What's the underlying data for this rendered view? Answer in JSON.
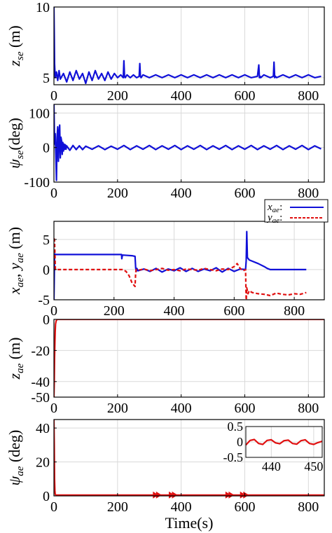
{
  "colors": {
    "blue": "#1010d8",
    "red": "#e01010",
    "grid": "#d9d9d9",
    "axis": "#000000"
  },
  "chart_data": [
    {
      "type": "line",
      "ylabel_main": "z",
      "ylabel_sub": "se",
      "ylabel_unit": " (m)",
      "xlim": [
        0,
        850
      ],
      "ylim": [
        4.5,
        10
      ],
      "xticks": [
        0,
        200,
        400,
        600,
        800
      ],
      "yticks": [
        5,
        10
      ],
      "xtick_labels": [
        "0",
        "200",
        "400",
        "600",
        "800"
      ],
      "ytick_labels": [
        "5",
        "10"
      ],
      "grid": true,
      "series": [
        {
          "color": "blue",
          "style": "solid",
          "x": [
            0,
            1,
            2,
            4,
            8,
            12,
            16,
            20,
            30,
            40,
            50,
            60,
            70,
            80,
            90,
            100,
            110,
            120,
            130,
            140,
            150,
            160,
            170,
            180,
            190,
            200,
            210,
            218,
            220,
            222,
            224,
            230,
            240,
            250,
            260,
            268,
            270,
            272,
            274,
            280,
            300,
            320,
            340,
            360,
            380,
            400,
            420,
            440,
            460,
            480,
            500,
            520,
            540,
            560,
            580,
            600,
            620,
            640,
            644,
            646,
            648,
            650,
            660,
            680,
            690,
            692,
            694,
            696,
            700,
            720,
            740,
            760,
            780,
            800,
            820,
            840
          ],
          "y": [
            10,
            8,
            6,
            5,
            5.4,
            4.8,
            5.5,
            4.9,
            5.3,
            4.7,
            5.4,
            4.8,
            5.5,
            4.9,
            5.3,
            4.6,
            5.4,
            4.8,
            5.5,
            4.9,
            5.3,
            4.8,
            5.4,
            4.9,
            5.3,
            5.0,
            5.2,
            5.0,
            6.2,
            5.1,
            5.0,
            5.2,
            5.0,
            5.2,
            5.0,
            5.1,
            6.0,
            5.1,
            5.0,
            5.2,
            5.0,
            5.2,
            5.0,
            5.2,
            5.0,
            5.2,
            5.0,
            5.2,
            5.0,
            5.2,
            5.0,
            5.2,
            5.0,
            5.2,
            5.0,
            5.2,
            5.0,
            5.1,
            5.9,
            5.0,
            5.1,
            5.0,
            5.2,
            5.0,
            5.1,
            6.1,
            5.0,
            5.1,
            5.0,
            5.2,
            5.0,
            5.2,
            5.0,
            5.2,
            5.0,
            5.1
          ]
        }
      ]
    },
    {
      "type": "line",
      "ylabel_main": "ψ",
      "ylabel_sub": "se",
      "ylabel_unit": "(deg)",
      "xlim": [
        0,
        850
      ],
      "ylim": [
        -100,
        125
      ],
      "xticks": [
        0,
        200,
        400,
        600,
        800
      ],
      "yticks": [
        -100,
        0,
        100
      ],
      "xtick_labels": [
        "0",
        "200",
        "400",
        "600",
        "800"
      ],
      "ytick_labels": [
        "-100",
        "0",
        "100"
      ],
      "grid": true,
      "series": [
        {
          "color": "blue",
          "style": "solid",
          "x": [
            0,
            2,
            4,
            6,
            8,
            10,
            12,
            14,
            16,
            18,
            20,
            22,
            24,
            26,
            28,
            30,
            32,
            34,
            36,
            38,
            40,
            50,
            60,
            70,
            80,
            90,
            100,
            120,
            140,
            160,
            180,
            200,
            220,
            240,
            260,
            280,
            300,
            320,
            340,
            360,
            380,
            400,
            420,
            440,
            460,
            480,
            500,
            520,
            540,
            560,
            580,
            600,
            620,
            640,
            660,
            680,
            700,
            720,
            740,
            760,
            780,
            800,
            820,
            840
          ],
          "y": [
            125,
            10,
            40,
            -20,
            -95,
            30,
            60,
            -40,
            40,
            65,
            -30,
            30,
            20,
            -20,
            15,
            -10,
            10,
            -5,
            8,
            -5,
            5,
            -8,
            6,
            -6,
            5,
            -6,
            4,
            -5,
            5,
            -6,
            4,
            -5,
            6,
            -6,
            5,
            -5,
            6,
            -6,
            5,
            -5,
            6,
            -6,
            5,
            -5,
            6,
            -6,
            5,
            -5,
            6,
            -6,
            5,
            -5,
            6,
            -6,
            5,
            -5,
            6,
            -6,
            5,
            -5,
            6,
            -6,
            5,
            -4
          ]
        }
      ]
    },
    {
      "type": "line",
      "ylabel_main": "x",
      "ylabel_sub": "ae",
      "ylabel_main2": "y",
      "ylabel_sub2": "ae",
      "ylabel_unit": " (m)",
      "xlim": [
        0,
        900
      ],
      "ylim": [
        -5,
        8
      ],
      "xticks": [
        0,
        200,
        400,
        600,
        800
      ],
      "yticks": [
        -5,
        0,
        5
      ],
      "xtick_labels": [
        "0",
        "200",
        "400",
        "600",
        "800"
      ],
      "ytick_labels": [
        "-5",
        "0",
        "5"
      ],
      "grid": true,
      "legend": {
        "position": "top-right",
        "entries": [
          {
            "label_main": "x",
            "label_sub": "ae",
            "color": "blue",
            "style": "solid"
          },
          {
            "label_main": "y",
            "label_sub": "ae",
            "color": "red",
            "style": "dashed"
          }
        ]
      },
      "series": [
        {
          "color": "blue",
          "style": "solid",
          "x": [
            0,
            1,
            2,
            3,
            5,
            10,
            50,
            100,
            150,
            200,
            225,
            226,
            228,
            230,
            260,
            270,
            272,
            274,
            276,
            280,
            300,
            320,
            340,
            360,
            380,
            400,
            420,
            440,
            460,
            480,
            500,
            520,
            540,
            560,
            580,
            600,
            620,
            638,
            640,
            642,
            644,
            650,
            660,
            680,
            700,
            710,
            720,
            740,
            760,
            780,
            800,
            820,
            840
          ],
          "y": [
            -5,
            -2,
            2.4,
            2.6,
            2.5,
            2.5,
            2.5,
            2.5,
            2.5,
            2.5,
            2.5,
            1.8,
            2.4,
            2.4,
            2.3,
            2.2,
            0.3,
            -0.3,
            0.2,
            -0.2,
            0.1,
            -0.3,
            0.2,
            -0.4,
            0.1,
            -0.2,
            0.3,
            -0.3,
            0.2,
            -0.3,
            0.1,
            -0.2,
            0.3,
            -0.4,
            0.2,
            -0.3,
            0.1,
            0,
            1.5,
            6.3,
            2.0,
            1.6,
            1.4,
            1.0,
            0.5,
            0.2,
            0,
            0,
            0,
            0,
            0,
            0,
            0
          ]
        },
        {
          "color": "red",
          "style": "dashed",
          "x": [
            0,
            2,
            5,
            10,
            50,
            100,
            150,
            200,
            230,
            240,
            250,
            260,
            270,
            272,
            274,
            280,
            300,
            320,
            340,
            360,
            380,
            400,
            420,
            440,
            460,
            480,
            500,
            520,
            540,
            560,
            580,
            600,
            610,
            620,
            630,
            638,
            640,
            642,
            646,
            650,
            660,
            680,
            700,
            720,
            740,
            760,
            780,
            800,
            820,
            840
          ],
          "y": [
            5.2,
            4.8,
            0,
            0,
            0,
            0,
            0,
            0,
            0,
            -0.3,
            -1.0,
            -2.2,
            -2.8,
            -0.5,
            0,
            -0.1,
            0.1,
            -0.2,
            0,
            0.2,
            -0.1,
            0,
            -0.2,
            0.1,
            0,
            -0.1,
            0.2,
            0,
            -0.2,
            0.1,
            0,
            0.5,
            1.0,
            0.2,
            -0.2,
            0,
            -5.5,
            -3.0,
            -4.0,
            -3.5,
            -3.8,
            -4.0,
            -4.1,
            -4.3,
            -3.9,
            -4.1,
            -4.2,
            -4.0,
            -4.1,
            -3.8
          ]
        }
      ]
    },
    {
      "type": "line",
      "ylabel_main": "z",
      "ylabel_sub": "ae",
      "ylabel_unit": " (m)",
      "xlim": [
        0,
        850
      ],
      "ylim": [
        -50,
        0
      ],
      "xticks": [
        0,
        200,
        400,
        600,
        800
      ],
      "yticks": [
        -50,
        -40,
        -20,
        0
      ],
      "xtick_labels": [
        "0",
        "200",
        "400",
        "600",
        "800"
      ],
      "ytick_labels": [
        "-50",
        "-40",
        "-20",
        "0"
      ],
      "grid": true,
      "series": [
        {
          "color": "red",
          "style": "solid",
          "x": [
            0,
            1,
            2,
            3,
            4,
            5,
            7,
            10,
            20,
            100,
            200,
            400,
            600,
            800,
            850
          ],
          "y": [
            -50,
            -40,
            -25,
            -15,
            -8,
            -3,
            -1,
            0,
            0,
            0,
            0,
            0,
            0,
            0,
            0
          ]
        }
      ]
    },
    {
      "type": "line",
      "ylabel_main": "ψ",
      "ylabel_sub": "ae",
      "ylabel_unit": " (deg)",
      "xlim": [
        0,
        850
      ],
      "ylim": [
        0,
        45
      ],
      "xticks": [
        0,
        200,
        400,
        600,
        800
      ],
      "yticks": [
        0,
        20,
        40
      ],
      "xtick_labels": [
        "0",
        "200",
        "400",
        "600",
        "800"
      ],
      "ytick_labels": [
        "0",
        "20",
        "40"
      ],
      "xlabel": "Time(s)",
      "grid": true,
      "series": [
        {
          "color": "red",
          "style": "solid",
          "x": [
            0,
            1,
            2,
            3,
            4,
            6,
            10,
            100,
            200,
            300,
            400,
            500,
            600,
            700,
            800,
            850
          ],
          "y": [
            45,
            30,
            10,
            3,
            1,
            0.5,
            0.5,
            0.5,
            0.5,
            0.5,
            0.5,
            0.5,
            0.5,
            0.5,
            0.5,
            0.5
          ]
        }
      ],
      "markers": {
        "color": "red",
        "x": [
          320,
          330,
          370,
          380,
          548,
          558,
          594,
          604
        ],
        "y": 0.5
      },
      "inset": {
        "xlim": [
          434,
          452
        ],
        "ylim": [
          -0.5,
          0.5
        ],
        "xticks": [
          440,
          450
        ],
        "yticks": [
          -0.5,
          0,
          0.5
        ],
        "xtick_labels": [
          "440",
          "450"
        ],
        "ytick_labels": [
          "-0.5",
          "0",
          "0.5"
        ],
        "series": [
          {
            "color": "red",
            "style": "solid",
            "x": [
              434,
              435,
              436,
              437,
              438,
              439,
              440,
              441,
              442,
              443,
              444,
              445,
              446,
              447,
              448,
              449,
              450,
              451,
              452
            ],
            "y": [
              -0.1,
              0.05,
              0.08,
              -0.05,
              -0.08,
              0.05,
              0.07,
              -0.03,
              -0.06,
              0.04,
              0.06,
              -0.05,
              -0.07,
              0.04,
              0.07,
              -0.05,
              -0.08,
              -0.02,
              0.02
            ]
          }
        ]
      }
    }
  ]
}
